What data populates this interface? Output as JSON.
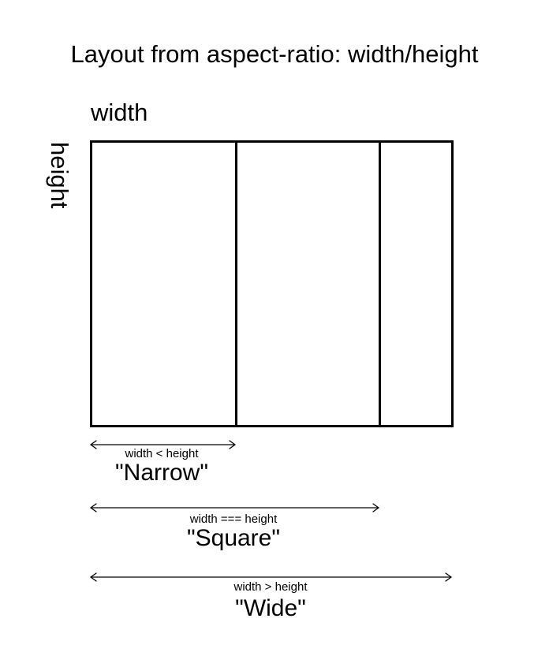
{
  "title": "Layout from aspect-ratio: width/height",
  "axis_labels": {
    "width": "width",
    "height": "height"
  },
  "categories": [
    {
      "condition": "width < height",
      "name": "\"Narrow\""
    },
    {
      "condition": "width === height",
      "name": "\"Square\""
    },
    {
      "condition": "width > height",
      "name": "\"Wide\""
    }
  ]
}
